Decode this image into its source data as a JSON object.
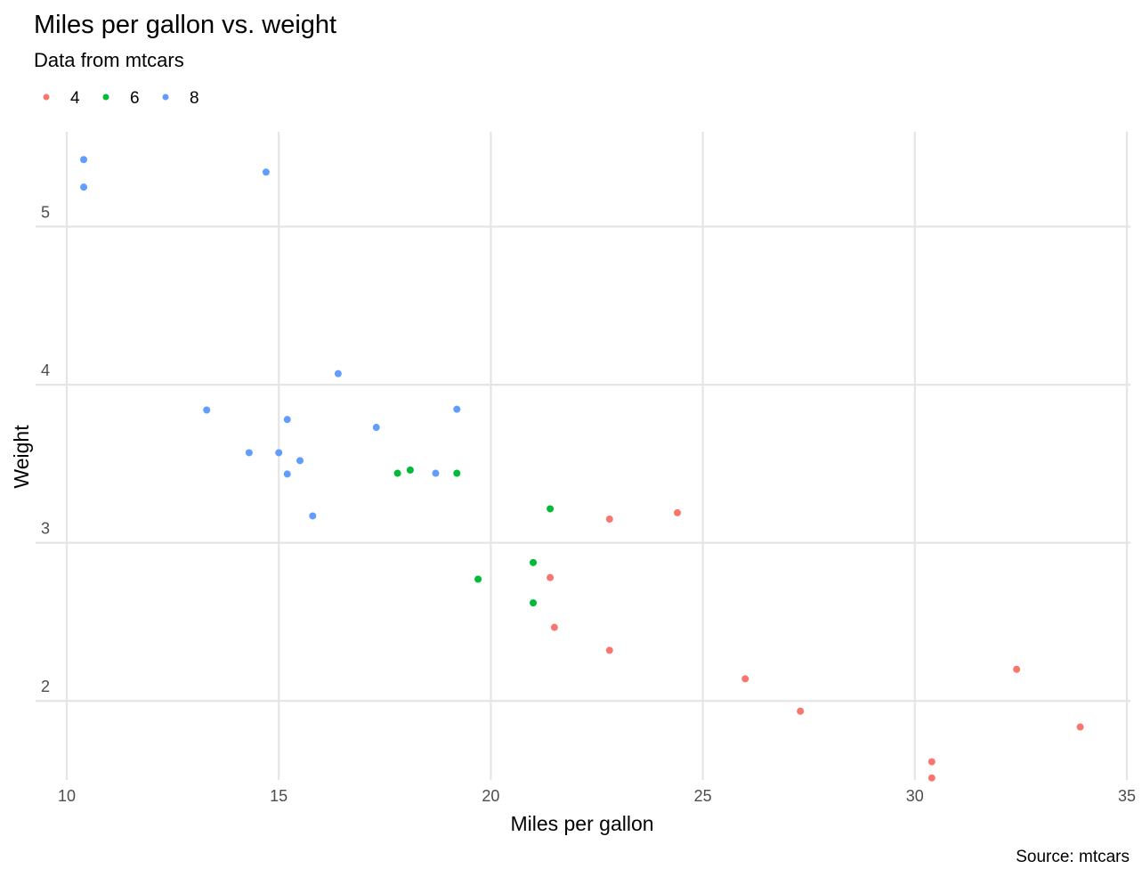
{
  "chart_data": {
    "type": "scatter",
    "title": "Miles per gallon vs. weight",
    "subtitle": "Data from mtcars",
    "xlabel": "Miles per gallon",
    "ylabel": "Weight",
    "caption": "Source: mtcars",
    "xlim": [
      10,
      35
    ],
    "ylim": [
      1.5,
      5.6
    ],
    "x_ticks": [
      10,
      15,
      20,
      25,
      30,
      35
    ],
    "y_ticks": [
      2,
      3,
      4,
      5
    ],
    "grid": true,
    "legend_position": "top-left",
    "series": [
      {
        "name": "4",
        "color": "#F8766D",
        "points": [
          {
            "x": 22.8,
            "y": 2.32
          },
          {
            "x": 24.4,
            "y": 3.19
          },
          {
            "x": 22.8,
            "y": 3.15
          },
          {
            "x": 32.4,
            "y": 2.2
          },
          {
            "x": 30.4,
            "y": 1.615
          },
          {
            "x": 33.9,
            "y": 1.835
          },
          {
            "x": 21.5,
            "y": 2.465
          },
          {
            "x": 27.3,
            "y": 1.935
          },
          {
            "x": 26.0,
            "y": 2.14
          },
          {
            "x": 30.4,
            "y": 1.513
          },
          {
            "x": 21.4,
            "y": 2.78
          }
        ]
      },
      {
        "name": "6",
        "color": "#00BA38",
        "points": [
          {
            "x": 21.0,
            "y": 2.62
          },
          {
            "x": 21.0,
            "y": 2.875
          },
          {
            "x": 21.4,
            "y": 3.215
          },
          {
            "x": 18.1,
            "y": 3.46
          },
          {
            "x": 19.2,
            "y": 3.44
          },
          {
            "x": 17.8,
            "y": 3.44
          },
          {
            "x": 19.7,
            "y": 2.77
          }
        ]
      },
      {
        "name": "8",
        "color": "#619CFF",
        "points": [
          {
            "x": 18.7,
            "y": 3.44
          },
          {
            "x": 14.3,
            "y": 3.57
          },
          {
            "x": 16.4,
            "y": 4.07
          },
          {
            "x": 17.3,
            "y": 3.73
          },
          {
            "x": 15.2,
            "y": 3.78
          },
          {
            "x": 10.4,
            "y": 5.25
          },
          {
            "x": 10.4,
            "y": 5.424
          },
          {
            "x": 14.7,
            "y": 5.345
          },
          {
            "x": 15.5,
            "y": 3.52
          },
          {
            "x": 15.2,
            "y": 3.435
          },
          {
            "x": 13.3,
            "y": 3.84
          },
          {
            "x": 19.2,
            "y": 3.845
          },
          {
            "x": 15.8,
            "y": 3.17
          },
          {
            "x": 15.0,
            "y": 3.57
          }
        ]
      }
    ]
  }
}
